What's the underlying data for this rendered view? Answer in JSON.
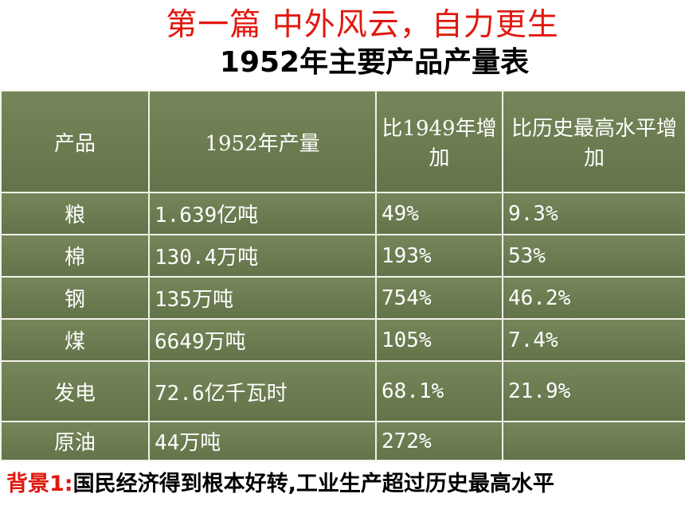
{
  "title": "第一篇  中外风云，自力更生",
  "subtitle": "1952年主要产品产量表",
  "table": {
    "headers": [
      "产品",
      "1952年产量",
      "比1949年增加",
      "比历史最高水平增加"
    ],
    "rows": [
      {
        "product": "粮",
        "output": "1.639亿吨",
        "vs1949": "49%",
        "vsRecord": "9.3%"
      },
      {
        "product": "棉",
        "output": "130.4万吨",
        "vs1949": "193%",
        "vsRecord": "53%"
      },
      {
        "product": "钢",
        "output": "135万吨",
        "vs1949": "754%",
        "vsRecord": "46.2%"
      },
      {
        "product": "煤",
        "output": "6649万吨",
        "vs1949": "105%",
        "vsRecord": "7.4%"
      },
      {
        "product": "发电",
        "output": "72.6亿千瓦时",
        "vs1949": "68.1%",
        "vsRecord": "21.9%"
      },
      {
        "product": "原油",
        "output": "44万吨",
        "vs1949": "272%",
        "vsRecord": ""
      }
    ]
  },
  "footer": {
    "label": "背景1:",
    "text": "国民经济得到根本好转,工业生产超过历史最高水平"
  }
}
